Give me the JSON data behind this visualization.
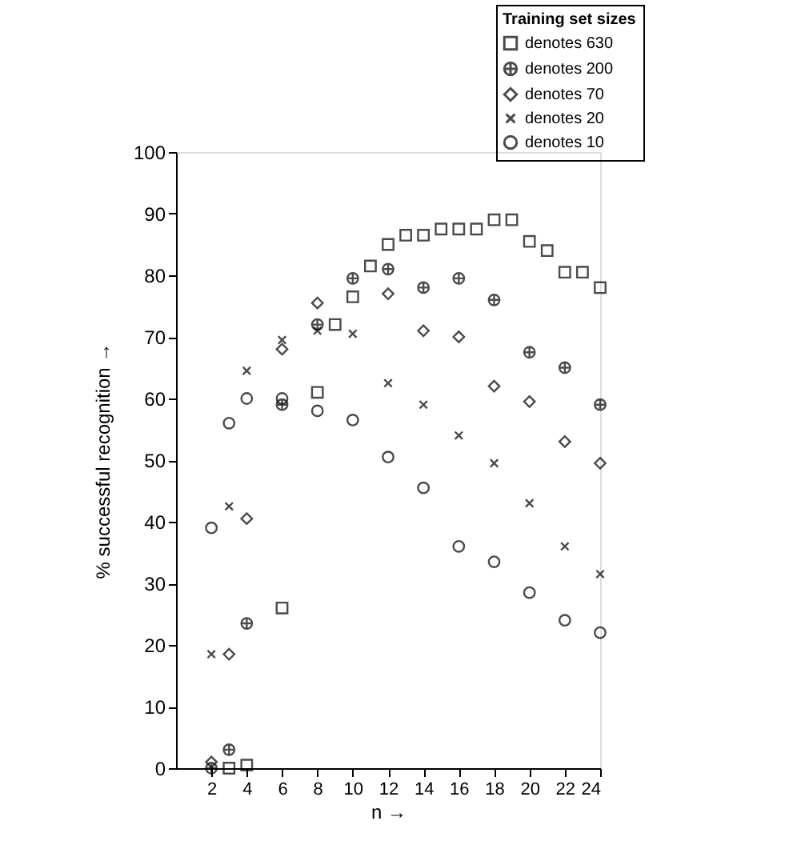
{
  "chart_data": {
    "type": "scatter",
    "xlabel": "n →",
    "ylabel": "% successful recognition →",
    "legend_title": "Training set sizes",
    "xlim": [
      0,
      24
    ],
    "ylim": [
      0,
      100
    ],
    "xticks": [
      2,
      4,
      6,
      8,
      10,
      12,
      14,
      16,
      18,
      20,
      22,
      24
    ],
    "yticks": [
      0,
      10,
      20,
      30,
      40,
      50,
      60,
      70,
      80,
      90,
      100
    ],
    "grid": false,
    "legend": "top right",
    "series": [
      {
        "name": "denotes 630",
        "color": "#000000",
        "marker": "square",
        "x": [
          3,
          4,
          6,
          8,
          9,
          10,
          11,
          12,
          13,
          14,
          15,
          16,
          17,
          18,
          19,
          20,
          21,
          22,
          23,
          24
        ],
        "values": [
          0,
          0.5,
          26,
          61,
          72,
          76.5,
          81.5,
          85,
          86.5,
          86.5,
          87.5,
          87.5,
          87.5,
          89,
          89,
          85.5,
          84,
          80.5,
          80.5,
          78
        ]
      },
      {
        "name": "denotes 200",
        "color": "#000000",
        "x": [
          2,
          3,
          4,
          6,
          8,
          10,
          12,
          14,
          16,
          18,
          20,
          22,
          24
        ],
        "values": [
          0,
          3,
          23.5,
          59,
          72,
          79.5,
          81,
          78,
          79.5,
          76,
          67.5,
          65,
          59
        ]
      },
      {
        "name": "denotes 70",
        "color": "#000000",
        "marker": "diamond",
        "x": [
          2,
          3,
          4,
          6,
          8,
          12,
          14,
          16,
          18,
          20,
          22,
          24
        ],
        "values": [
          1,
          18.5,
          40.5,
          68,
          75.5,
          77,
          71,
          70,
          62,
          59.5,
          53,
          49.5
        ]
      },
      {
        "name": "denotes 20",
        "color": "#000000",
        "marker": "cross",
        "x": [
          2,
          3,
          4,
          6,
          8,
          10,
          12,
          14,
          16,
          18,
          20,
          22,
          24
        ],
        "values": [
          18.5,
          42.5,
          64.5,
          69.5,
          71,
          70.5,
          62.5,
          59,
          54,
          49.5,
          43,
          36,
          31.5
        ]
      },
      {
        "name": "denotes 10",
        "color": "#000000",
        "marker": "circle",
        "x": [
          2,
          3,
          4,
          6,
          8,
          10,
          12,
          14,
          16,
          18,
          20,
          22,
          24
        ],
        "values": [
          39,
          56,
          60,
          60,
          58,
          56.5,
          50.5,
          45.5,
          36,
          33.5,
          28.5,
          24,
          22
        ]
      }
    ]
  }
}
